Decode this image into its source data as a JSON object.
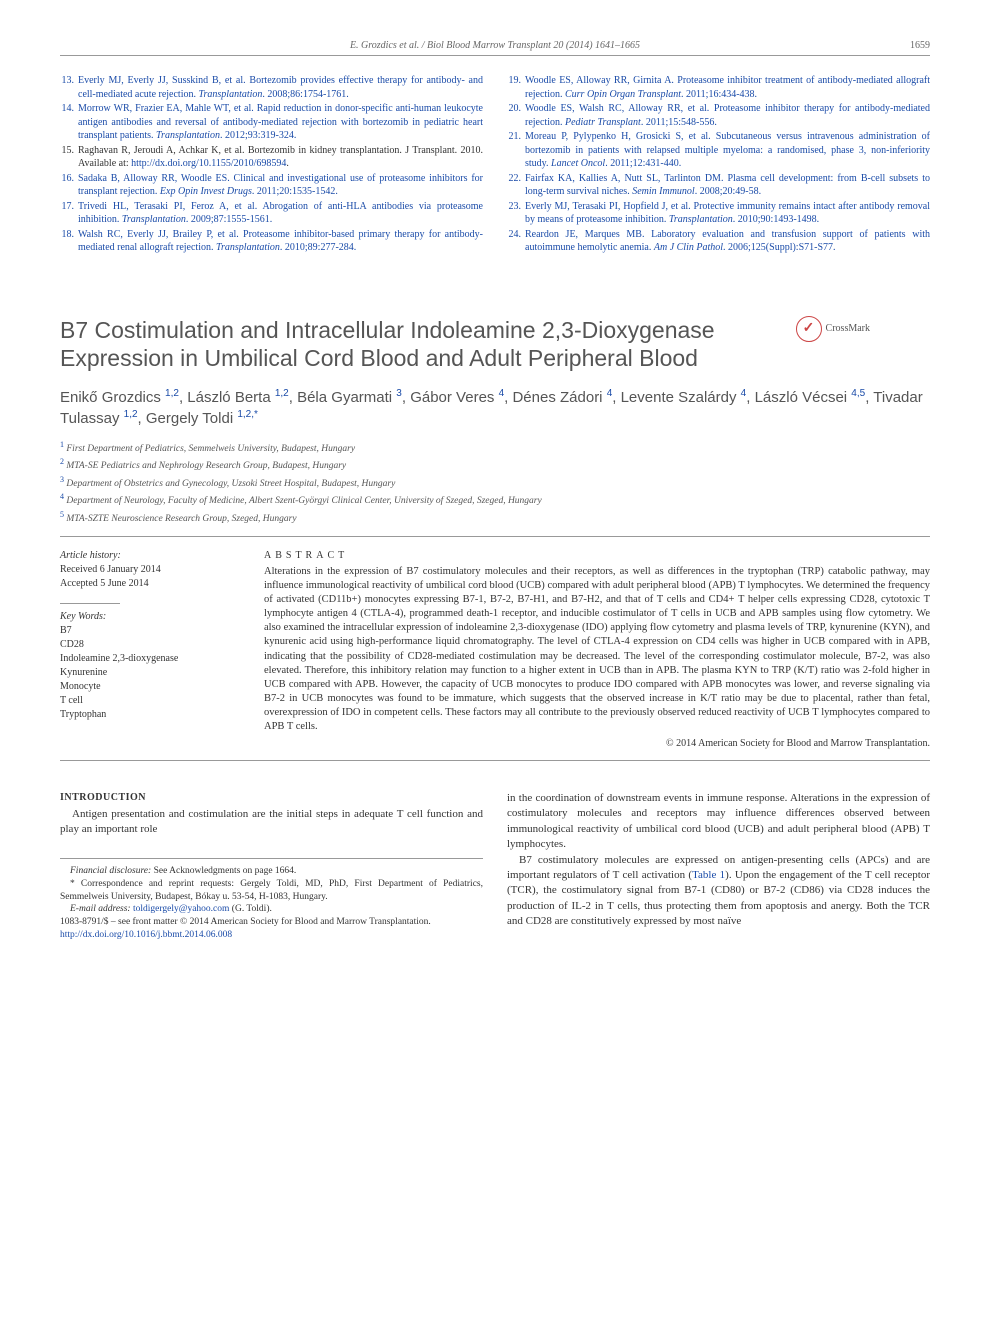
{
  "page": {
    "running_head": "E. Grozdics et al. / Biol Blood Marrow Transplant 20 (2014) 1641–1665",
    "page_number": "1659"
  },
  "refs_left": [
    {
      "n": "13.",
      "link": true,
      "text": "Everly MJ, Everly JJ, Susskind B, et al. Bortezomib provides effective therapy for antibody- and cell-mediated acute rejection.",
      "journal": "Transplantation",
      "tail": ". 2008;86:1754-1761."
    },
    {
      "n": "14.",
      "link": true,
      "text": "Morrow WR, Frazier EA, Mahle WT, et al. Rapid reduction in donor-specific anti-human leukocyte antigen antibodies and reversal of antibody-mediated rejection with bortezomib in pediatric heart transplant patients.",
      "journal": "Transplantation",
      "tail": ". 2012;93:319-324."
    },
    {
      "n": "15.",
      "link": false,
      "text": "Raghavan R, Jeroudi A, Achkar K, et al. Bortezomib in kidney transplantation. J Transplant. 2010. Available at: ",
      "url": "http://dx.doi.org/10.1155/2010/698594",
      "tail": "."
    },
    {
      "n": "16.",
      "link": true,
      "text": "Sadaka B, Alloway RR, Woodle ES. Clinical and investigational use of proteasome inhibitors for transplant rejection.",
      "journal": "Exp Opin Invest Drugs",
      "tail": ". 2011;20:1535-1542."
    },
    {
      "n": "17.",
      "link": true,
      "text": "Trivedi HL, Terasaki PI, Feroz A, et al. Abrogation of anti-HLA antibodies via proteasome inhibition.",
      "journal": "Transplantation",
      "tail": ". 2009;87:1555-1561."
    },
    {
      "n": "18.",
      "link": true,
      "text": "Walsh RC, Everly JJ, Brailey P, et al. Proteasome inhibitor-based primary therapy for antibody-mediated renal allograft rejection.",
      "journal": "Transplantation",
      "tail": ". 2010;89:277-284."
    }
  ],
  "refs_right": [
    {
      "n": "19.",
      "link": true,
      "text": "Woodle ES, Alloway RR, Girnita A. Proteasome inhibitor treatment of antibody-mediated allograft rejection.",
      "journal": "Curr Opin Organ Transplant",
      "tail": ". 2011;16:434-438."
    },
    {
      "n": "20.",
      "link": true,
      "text": "Woodle ES, Walsh RC, Alloway RR, et al. Proteasome inhibitor therapy for antibody-mediated rejection.",
      "journal": "Pediatr Transplant",
      "tail": ". 2011;15:548-556."
    },
    {
      "n": "21.",
      "link": true,
      "text": "Moreau P, Pylypenko H, Grosicki S, et al. Subcutaneous versus intravenous administration of bortezomib in patients with relapsed multiple myeloma: a randomised, phase 3, non-inferiority study.",
      "journal": "Lancet Oncol",
      "tail": ". 2011;12:431-440."
    },
    {
      "n": "22.",
      "link": true,
      "text": "Fairfax KA, Kallies A, Nutt SL, Tarlinton DM. Plasma cell development: from B-cell subsets to long-term survival niches.",
      "journal": "Semin Immunol",
      "tail": ". 2008;20:49-58."
    },
    {
      "n": "23.",
      "link": true,
      "text": "Everly MJ, Terasaki PI, Hopfield J, et al. Protective immunity remains intact after antibody removal by means of proteasome inhibition.",
      "journal": "Transplantation",
      "tail": ". 2010;90:1493-1498."
    },
    {
      "n": "24.",
      "link": true,
      "text": "Reardon JE, Marques MB. Laboratory evaluation and transfusion support of patients with autoimmune hemolytic anemia.",
      "journal": "Am J Clin Pathol",
      "tail": ". 2006;125(Suppl):S71-S77."
    }
  ],
  "article": {
    "title": "B7 Costimulation and Intracellular Indoleamine 2,3-Dioxygenase Expression in Umbilical Cord Blood and Adult Peripheral Blood",
    "crossmark": "CrossMark",
    "authors_html": "Enikő Grozdics <sup>1,2</sup>, László Berta <sup>1,2</sup>, Béla Gyarmati <sup>3</sup>, Gábor Veres <sup>4</sup>, Dénes Zádori <sup>4</sup>, Levente Szalárdy <sup>4</sup>, László Vécsei <sup>4,5</sup>, Tivadar Tulassay <sup>1,2</sup>, Gergely Toldi <sup>1,2,*</sup>",
    "affiliations": [
      {
        "n": "1",
        "text": "First Department of Pediatrics, Semmelweis University, Budapest, Hungary"
      },
      {
        "n": "2",
        "text": "MTA-SE Pediatrics and Nephrology Research Group, Budapest, Hungary"
      },
      {
        "n": "3",
        "text": "Department of Obstetrics and Gynecology, Uzsoki Street Hospital, Budapest, Hungary"
      },
      {
        "n": "4",
        "text": "Department of Neurology, Faculty of Medicine, Albert Szent-Györgyi Clinical Center, University of Szeged, Szeged, Hungary"
      },
      {
        "n": "5",
        "text": "MTA-SZTE Neuroscience Research Group, Szeged, Hungary"
      }
    ]
  },
  "meta": {
    "history_label": "Article history:",
    "received": "Received 6 January 2014",
    "accepted": "Accepted 5 June 2014",
    "keywords_label": "Key Words:",
    "keywords": [
      "B7",
      "CD28",
      "Indoleamine 2,3-dioxygenase",
      "Kynurenine",
      "Monocyte",
      "T cell",
      "Tryptophan"
    ]
  },
  "abstract": {
    "head": "ABSTRACT",
    "body": "Alterations in the expression of B7 costimulatory molecules and their receptors, as well as differences in the tryptophan (TRP) catabolic pathway, may influence immunological reactivity of umbilical cord blood (UCB) compared with adult peripheral blood (APB) T lymphocytes. We determined the frequency of activated (CD11b+) monocytes expressing B7-1, B7-2, B7-H1, and B7-H2, and that of T cells and CD4+ T helper cells expressing CD28, cytotoxic T lymphocyte antigen 4 (CTLA-4), programmed death-1 receptor, and inducible costimulator of T cells in UCB and APB samples using flow cytometry. We also examined the intracellular expression of indoleamine 2,3-dioxygenase (IDO) applying flow cytometry and plasma levels of TRP, kynurenine (KYN), and kynurenic acid using high-performance liquid chromatography. The level of CTLA-4 expression on CD4 cells was higher in UCB compared with in APB, indicating that the possibility of CD28-mediated costimulation may be decreased. The level of the corresponding costimulator molecule, B7-2, was also elevated. Therefore, this inhibitory relation may function to a higher extent in UCB than in APB. The plasma KYN to TRP (K/T) ratio was 2-fold higher in UCB compared with APB. However, the capacity of UCB monocytes to produce IDO compared with APB monocytes was lower, and reverse signaling via B7-2 in UCB monocytes was found to be immature, which suggests that the observed increase in K/T ratio may be due to placental, rather than fetal, overexpression of IDO in competent cells. These factors may all contribute to the previously observed reduced reactivity of UCB T lymphocytes compared to APB T cells.",
    "copyright": "© 2014 American Society for Blood and Marrow Transplantation."
  },
  "body": {
    "section_head": "INTRODUCTION",
    "col1_p1": "Antigen presentation and costimulation are the initial steps in adequate T cell function and play an important role",
    "col2_p1": "in the coordination of downstream events in immune response. Alterations in the expression of costimulatory molecules and receptors may influence differences observed between immunological reactivity of umbilical cord blood (UCB) and adult peripheral blood (APB) T lymphocytes.",
    "col2_p2_pre": "B7 costimulatory molecules are expressed on antigen-presenting cells (APCs) and are important regulators of T cell activation (",
    "col2_p2_link": "Table 1",
    "col2_p2_post": "). Upon the engagement of the T cell receptor (TCR), the costimulatory signal from B7-1 (CD80) or B7-2 (CD86) via CD28 induces the production of IL-2 in T cells, thus protecting them from apoptosis and anergy. Both the TCR and CD28 are constitutively expressed by most naïve"
  },
  "footnotes": {
    "fin_disc_label": "Financial disclosure:",
    "fin_disc": " See Acknowledgments on page 1664.",
    "corr": "* Correspondence and reprint requests: Gergely Toldi, MD, PhD, First Department of Pediatrics, Semmelweis University, Budapest, Bókay u. 53-54, H-1083, Hungary.",
    "email_label": "E-mail address: ",
    "email": "toldigergely@yahoo.com",
    "email_tail": " (G. Toldi).",
    "issn": "1083-8791/$ – see front matter © 2014 American Society for Blood and Marrow Transplantation.",
    "doi": "http://dx.doi.org/10.1016/j.bbmt.2014.06.008"
  },
  "colors": {
    "link": "#1a4ba8",
    "text": "#333333",
    "muted": "#666666",
    "heading": "#555555"
  }
}
